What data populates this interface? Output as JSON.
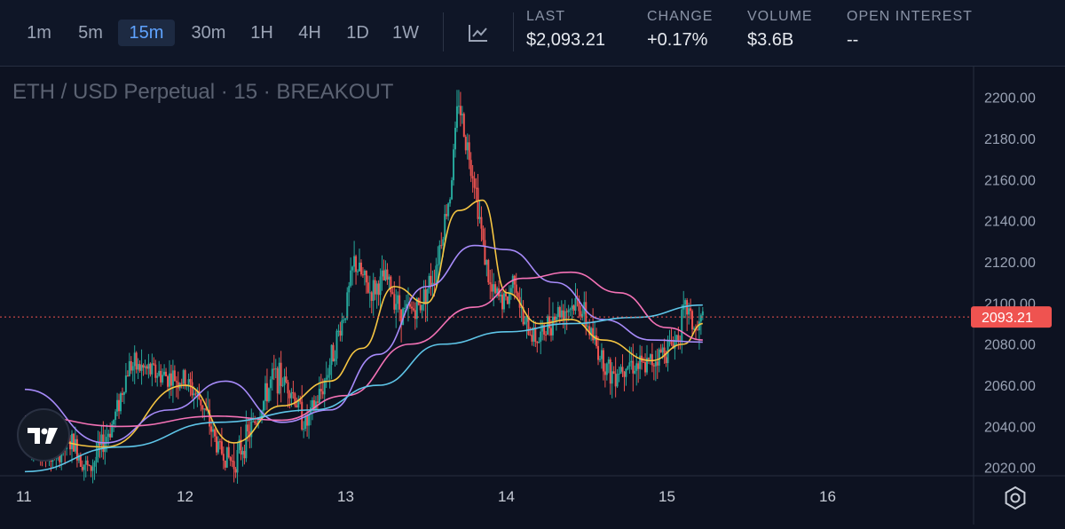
{
  "toolbar": {
    "timeframes": [
      "1m",
      "5m",
      "15m",
      "30m",
      "1H",
      "4H",
      "1D",
      "1W"
    ],
    "active_timeframe": "15m",
    "chart_type_icon": "line-chart-icon"
  },
  "stats": {
    "last": {
      "label": "LAST",
      "value": "$2,093.21"
    },
    "change": {
      "label": "CHANGE",
      "value": "+0.17%"
    },
    "volume": {
      "label": "VOLUME",
      "value": "$3.6B"
    },
    "open_interest": {
      "label": "OPEN INTEREST",
      "value": "--"
    }
  },
  "chart_title": "ETH / USD Perpetual · 15 · BREAKOUT",
  "colors": {
    "background": "#0d1221",
    "up": "#26a69a",
    "down": "#ef5350",
    "last_price": "#ef5350",
    "ma_fast": "#f5c542",
    "ma_mid": "#a78bfa",
    "ma_slow": "#f472b6",
    "ma_long": "#5ec5e8"
  },
  "chart_data": {
    "type": "candlestick",
    "title": "ETH / USD Perpetual · 15 · BREAKOUT",
    "x_ticks": [
      "11",
      "12",
      "13",
      "14",
      "15",
      "16"
    ],
    "y_ticks": [
      "2020.00",
      "2040.00",
      "2060.00",
      "2080.00",
      "2100.00",
      "2120.00",
      "2140.00",
      "2160.00",
      "2180.00",
      "2200.00"
    ],
    "ylim": [
      2016,
      2215
    ],
    "last_price": 2093.21,
    "last_price_label": "2093.21",
    "price_path": [
      [
        0.0,
        2035
      ],
      [
        0.15,
        2025
      ],
      [
        0.3,
        2032
      ],
      [
        0.4,
        2018
      ],
      [
        0.55,
        2042
      ],
      [
        0.65,
        2070
      ],
      [
        0.85,
        2065
      ],
      [
        1.0,
        2062
      ],
      [
        1.1,
        2052
      ],
      [
        1.2,
        2030
      ],
      [
        1.3,
        2022
      ],
      [
        1.45,
        2045
      ],
      [
        1.55,
        2065
      ],
      [
        1.65,
        2060
      ],
      [
        1.75,
        2040
      ],
      [
        1.85,
        2058
      ],
      [
        2.0,
        2098
      ],
      [
        2.05,
        2120
      ],
      [
        2.15,
        2105
      ],
      [
        2.25,
        2112
      ],
      [
        2.35,
        2095
      ],
      [
        2.45,
        2098
      ],
      [
        2.55,
        2115
      ],
      [
        2.6,
        2135
      ],
      [
        2.65,
        2155
      ],
      [
        2.7,
        2200
      ],
      [
        2.73,
        2185
      ],
      [
        2.8,
        2160
      ],
      [
        2.85,
        2130
      ],
      [
        2.9,
        2105
      ],
      [
        3.0,
        2100
      ],
      [
        3.05,
        2115
      ],
      [
        3.1,
        2090
      ],
      [
        3.2,
        2082
      ],
      [
        3.3,
        2095
      ],
      [
        3.45,
        2100
      ],
      [
        3.55,
        2080
      ],
      [
        3.65,
        2065
      ],
      [
        3.75,
        2072
      ],
      [
        3.85,
        2068
      ],
      [
        3.95,
        2075
      ],
      [
        4.05,
        2082
      ],
      [
        4.12,
        2098
      ],
      [
        4.18,
        2085
      ],
      [
        4.22,
        2093
      ]
    ],
    "moving_averages": [
      {
        "key": "ma_fast",
        "points": [
          [
            0.0,
            2035
          ],
          [
            0.5,
            2030
          ],
          [
            1.0,
            2060
          ],
          [
            1.3,
            2032
          ],
          [
            1.6,
            2050
          ],
          [
            1.9,
            2062
          ],
          [
            2.1,
            2078
          ],
          [
            2.3,
            2108
          ],
          [
            2.5,
            2100
          ],
          [
            2.7,
            2145
          ],
          [
            2.85,
            2150
          ],
          [
            3.0,
            2105
          ],
          [
            3.2,
            2090
          ],
          [
            3.4,
            2092
          ],
          [
            3.6,
            2082
          ],
          [
            3.9,
            2072
          ],
          [
            4.1,
            2080
          ],
          [
            4.22,
            2090
          ]
        ]
      },
      {
        "key": "ma_mid",
        "points": [
          [
            0.0,
            2058
          ],
          [
            0.5,
            2032
          ],
          [
            0.9,
            2048
          ],
          [
            1.25,
            2062
          ],
          [
            1.6,
            2042
          ],
          [
            1.9,
            2048
          ],
          [
            2.2,
            2075
          ],
          [
            2.5,
            2108
          ],
          [
            2.8,
            2128
          ],
          [
            3.0,
            2126
          ],
          [
            3.3,
            2110
          ],
          [
            3.6,
            2092
          ],
          [
            3.9,
            2082
          ],
          [
            4.22,
            2081
          ]
        ]
      },
      {
        "key": "ma_slow",
        "points": [
          [
            0.0,
            2045
          ],
          [
            0.6,
            2040
          ],
          [
            1.2,
            2045
          ],
          [
            1.6,
            2043
          ],
          [
            2.0,
            2055
          ],
          [
            2.4,
            2080
          ],
          [
            2.8,
            2098
          ],
          [
            3.1,
            2112
          ],
          [
            3.4,
            2115
          ],
          [
            3.7,
            2105
          ],
          [
            4.0,
            2088
          ],
          [
            4.22,
            2082
          ]
        ]
      },
      {
        "key": "ma_long",
        "points": [
          [
            0.0,
            2018
          ],
          [
            0.6,
            2030
          ],
          [
            1.2,
            2042
          ],
          [
            1.8,
            2048
          ],
          [
            2.2,
            2060
          ],
          [
            2.6,
            2080
          ],
          [
            3.0,
            2086
          ],
          [
            3.4,
            2090
          ],
          [
            3.8,
            2093
          ],
          [
            4.22,
            2099
          ]
        ]
      }
    ]
  }
}
